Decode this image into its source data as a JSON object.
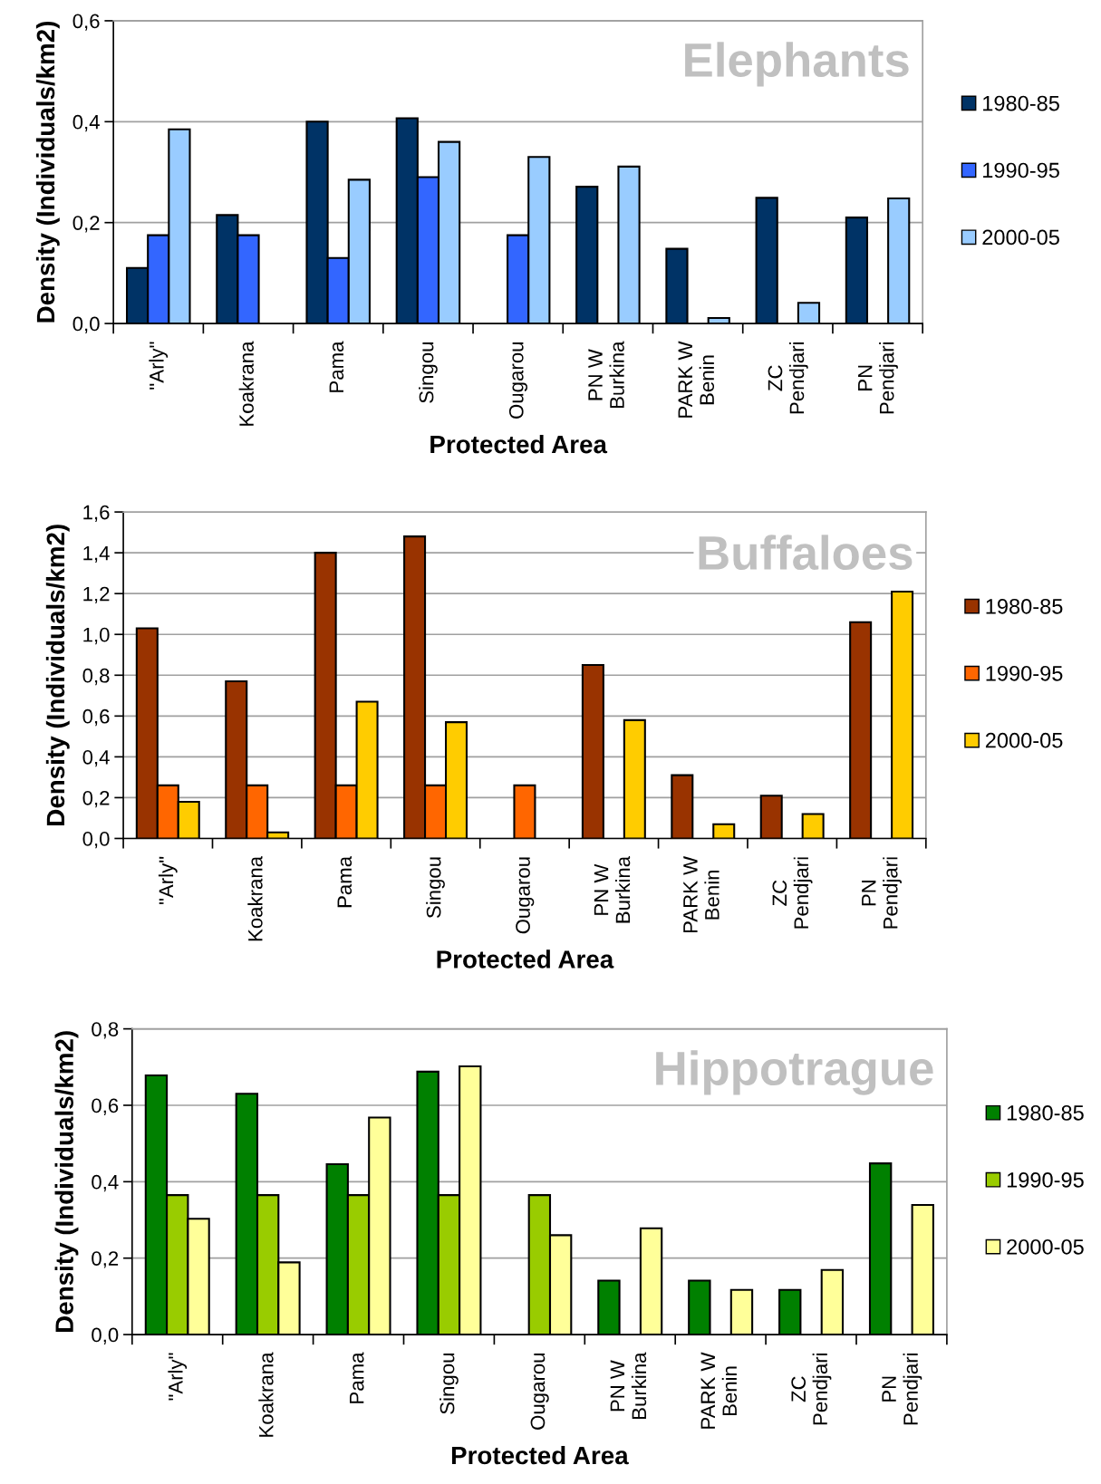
{
  "chart_data": [
    {
      "type": "bar",
      "title": "Elephants",
      "xlabel": "Protected Area",
      "ylabel": "Density (Individuals/km2)",
      "categories": [
        "\"Arly\"",
        "Koakrana",
        "Pama",
        "Singou",
        "Ougarou",
        "PN W\nBurkina",
        "PARK W\nBenin",
        "ZC\nPendjari",
        "PN\nPendjari"
      ],
      "series": [
        {
          "name": "1980-85",
          "color": "#003366",
          "values": [
            0.11,
            0.215,
            0.4,
            0.407,
            null,
            0.271,
            0.148,
            0.249,
            0.21
          ]
        },
        {
          "name": "1990-95",
          "color": "#3366ff",
          "values": [
            0.175,
            0.175,
            0.13,
            0.29,
            0.175,
            null,
            null,
            null,
            null
          ]
        },
        {
          "name": "2000-05",
          "color": "#99ccff",
          "values": [
            0.385,
            null,
            0.285,
            0.36,
            0.33,
            0.311,
            0.011,
            0.041,
            0.248
          ]
        }
      ],
      "ylim": [
        0,
        0.6
      ],
      "yticks": [
        {
          "value": 0,
          "label": "0,0"
        },
        {
          "value": 0.2,
          "label": "0,2"
        },
        {
          "value": 0.4,
          "label": "0,4"
        },
        {
          "value": 0.6,
          "label": "0,6"
        }
      ],
      "grid": "y",
      "legend": "right",
      "marker": "square"
    },
    {
      "type": "bar",
      "title": "Buffaloes",
      "xlabel": "Protected Area",
      "ylabel": "Density (Individuals/km2)",
      "categories": [
        "\"Arly\"",
        "Koakrana",
        "Pama",
        "Singou",
        "Ougarou",
        "PN W\nBurkina",
        "PARK W\nBenin",
        "ZC\nPendjari",
        "PN\nPendjari"
      ],
      "series": [
        {
          "name": "1980-85",
          "color": "#993300",
          "values": [
            1.03,
            0.77,
            1.4,
            1.48,
            null,
            0.85,
            0.31,
            0.21,
            1.06
          ]
        },
        {
          "name": "1990-95",
          "color": "#ff6600",
          "values": [
            0.26,
            0.26,
            0.26,
            0.26,
            0.26,
            null,
            null,
            null,
            null
          ]
        },
        {
          "name": "2000-05",
          "color": "#ffcc00",
          "values": [
            0.18,
            0.03,
            0.67,
            0.57,
            null,
            0.58,
            0.07,
            0.12,
            1.21
          ]
        }
      ],
      "ylim": [
        0,
        1.6
      ],
      "yticks": [
        {
          "value": 0,
          "label": "0,0"
        },
        {
          "value": 0.2,
          "label": "0,2"
        },
        {
          "value": 0.4,
          "label": "0,4"
        },
        {
          "value": 0.6,
          "label": "0,6"
        },
        {
          "value": 0.8,
          "label": "0,8"
        },
        {
          "value": 1.0,
          "label": "1,0"
        },
        {
          "value": 1.2,
          "label": "1,2"
        },
        {
          "value": 1.4,
          "label": "1,4"
        },
        {
          "value": 1.6,
          "label": "1,6"
        }
      ],
      "grid": "y",
      "legend": "right",
      "marker": "square"
    },
    {
      "type": "bar",
      "title": "Hippotrague",
      "xlabel": "Protected Area",
      "ylabel": "Density (Individuals/km2)",
      "categories": [
        "\"Arly\"",
        "Koakrana",
        "Pama",
        "Singou",
        "Ougarou",
        "PN W\nBurkina",
        "PARK W\nBenin",
        "ZC\nPendjari",
        "PN\nPendjari"
      ],
      "series": [
        {
          "name": "1980-85",
          "color": "#008000",
          "values": [
            0.678,
            0.63,
            0.446,
            0.688,
            null,
            0.141,
            0.141,
            0.117,
            0.448
          ]
        },
        {
          "name": "1990-95",
          "color": "#99cc00",
          "values": [
            0.365,
            0.365,
            0.365,
            0.365,
            0.365,
            null,
            null,
            null,
            null
          ]
        },
        {
          "name": "2000-05",
          "color": "#ffff99",
          "values": [
            0.303,
            0.189,
            0.568,
            0.702,
            0.26,
            0.278,
            0.117,
            0.169,
            0.339
          ]
        }
      ],
      "ylim": [
        0,
        0.8
      ],
      "yticks": [
        {
          "value": 0,
          "label": "0,0"
        },
        {
          "value": 0.2,
          "label": "0,2"
        },
        {
          "value": 0.4,
          "label": "0,4"
        },
        {
          "value": 0.6,
          "label": "0,6"
        },
        {
          "value": 0.8,
          "label": "0,8"
        }
      ],
      "grid": "y",
      "legend": "right",
      "marker": "square"
    }
  ]
}
